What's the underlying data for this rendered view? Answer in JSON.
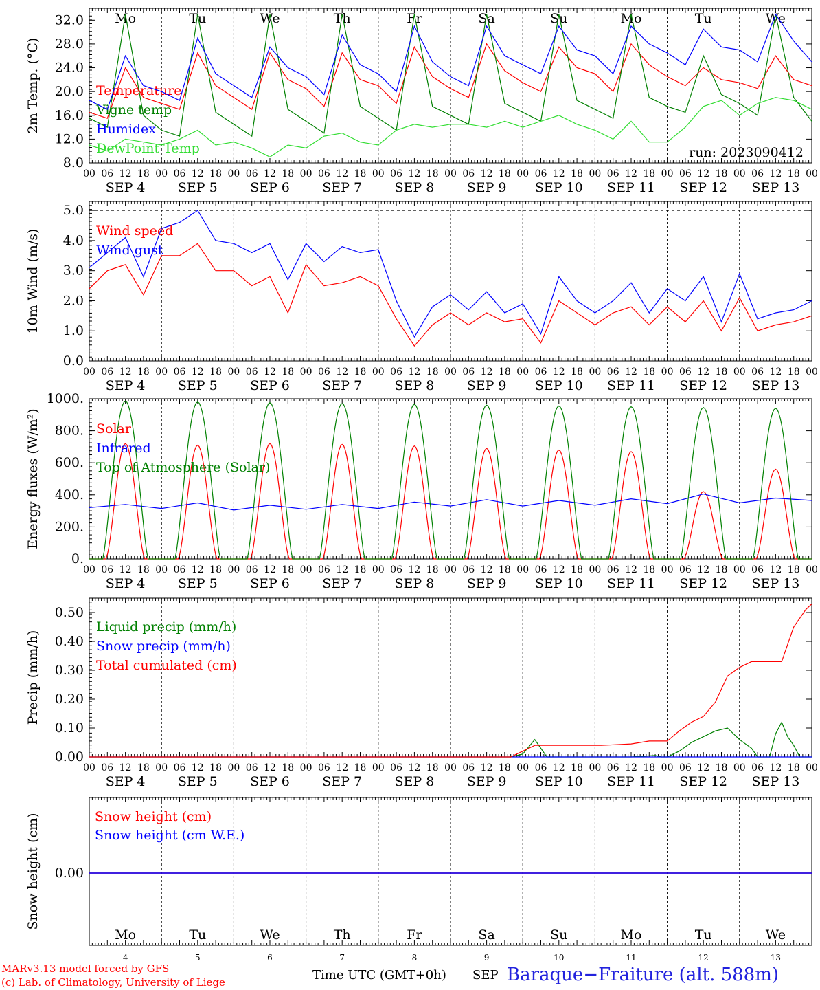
{
  "chart_data": [
    {
      "type": "line",
      "ylabel": "2m Temp. (°C)",
      "ylim": [
        8,
        34
      ],
      "yticks": [
        "8.0",
        "12.0",
        "16.0",
        "20.0",
        "24.0",
        "28.0",
        "32.0"
      ],
      "run_label": "run: 2023090412",
      "series": [
        {
          "name": "Temperature",
          "color": "#ff0000",
          "x": [
            0,
            6,
            12,
            18,
            24,
            30,
            36,
            42,
            48,
            54,
            60,
            66,
            72,
            78,
            84,
            90,
            96,
            102,
            108,
            114,
            120,
            126,
            132,
            138,
            144,
            150,
            156,
            162,
            168,
            174,
            180,
            186,
            192,
            198,
            204,
            210,
            216,
            222,
            228,
            234,
            240
          ],
          "y": [
            16.5,
            15.5,
            24.0,
            19.0,
            18.0,
            17.0,
            26.5,
            21.0,
            19.0,
            17.0,
            26.5,
            22.0,
            20.5,
            17.5,
            26.5,
            22.0,
            21.0,
            18.0,
            27.5,
            22.5,
            20.5,
            19.0,
            28.0,
            23.5,
            21.5,
            20.0,
            27.5,
            24.0,
            23.0,
            20.0,
            28.0,
            24.5,
            22.5,
            21.0,
            24.0,
            22.0,
            21.5,
            20.5,
            26.0,
            22.0,
            21.0
          ]
        },
        {
          "name": "Vigne temp",
          "color": "#008000",
          "x": [
            0,
            6,
            12,
            18,
            24,
            30,
            36,
            42,
            48,
            54,
            60,
            66,
            72,
            78,
            84,
            90,
            96,
            102,
            108,
            114,
            120,
            126,
            132,
            138,
            144,
            150,
            156,
            162,
            168,
            174,
            180,
            186,
            192,
            198,
            204,
            210,
            216,
            222,
            228,
            234,
            240
          ],
          "y": [
            15.5,
            14.0,
            33.0,
            16.0,
            13.5,
            12.5,
            33.0,
            16.5,
            14.5,
            12.5,
            33.0,
            17.0,
            15.0,
            13.0,
            33.0,
            17.5,
            15.5,
            13.5,
            33.0,
            17.5,
            16.0,
            14.5,
            33.0,
            18.0,
            16.5,
            15.0,
            33.0,
            18.5,
            17.0,
            15.5,
            33.0,
            19.0,
            17.5,
            16.5,
            26.0,
            19.5,
            18.0,
            16.0,
            33.0,
            19.0,
            15.0
          ]
        },
        {
          "name": "Humidex",
          "color": "#0000ff",
          "x": [
            0,
            6,
            12,
            18,
            24,
            30,
            36,
            42,
            48,
            54,
            60,
            66,
            72,
            78,
            84,
            90,
            96,
            102,
            108,
            114,
            120,
            126,
            132,
            138,
            144,
            150,
            156,
            162,
            168,
            174,
            180,
            186,
            192,
            198,
            204,
            210,
            216,
            222,
            228,
            234,
            240
          ],
          "y": [
            18.5,
            17.0,
            26.0,
            21.0,
            20.0,
            18.5,
            29.0,
            23.0,
            21.0,
            19.0,
            27.5,
            24.0,
            22.5,
            19.5,
            29.5,
            24.5,
            23.0,
            20.0,
            31.0,
            25.0,
            22.5,
            21.0,
            31.0,
            26.0,
            24.5,
            23.0,
            31.0,
            27.0,
            26.0,
            23.0,
            31.0,
            28.0,
            26.5,
            24.5,
            30.5,
            27.5,
            27.0,
            25.0,
            33.0,
            28.5,
            25.0
          ]
        },
        {
          "name": "DewPoint Temp",
          "color": "#33dd33",
          "x": [
            0,
            6,
            12,
            18,
            24,
            30,
            36,
            42,
            48,
            54,
            60,
            66,
            72,
            78,
            84,
            90,
            96,
            102,
            108,
            114,
            120,
            126,
            132,
            138,
            144,
            150,
            156,
            162,
            168,
            174,
            180,
            186,
            192,
            198,
            204,
            210,
            216,
            222,
            228,
            234,
            240
          ],
          "y": [
            11.0,
            10.0,
            12.0,
            11.5,
            11.0,
            12.0,
            13.5,
            11.0,
            11.5,
            10.5,
            9.0,
            11.0,
            10.5,
            12.5,
            13.0,
            11.5,
            11.0,
            13.5,
            14.5,
            14.0,
            14.5,
            14.5,
            14.0,
            15.0,
            14.0,
            15.0,
            16.0,
            14.5,
            13.5,
            12.0,
            15.0,
            11.5,
            11.5,
            14.0,
            17.5,
            18.5,
            16.0,
            18.0,
            19.0,
            18.5,
            17.0
          ]
        }
      ]
    },
    {
      "type": "line",
      "ylabel": "10m Wind (m/s)",
      "ylim": [
        0,
        5.3
      ],
      "yticks": [
        "0.0",
        "1.0",
        "2.0",
        "3.0",
        "4.0",
        "5.0"
      ],
      "series": [
        {
          "name": "Wind speed",
          "color": "#ff0000",
          "x": [
            0,
            6,
            12,
            18,
            24,
            30,
            36,
            42,
            48,
            54,
            60,
            66,
            72,
            78,
            84,
            90,
            96,
            102,
            108,
            114,
            120,
            126,
            132,
            138,
            144,
            150,
            156,
            162,
            168,
            174,
            180,
            186,
            192,
            198,
            204,
            210,
            216,
            222,
            228,
            234,
            240
          ],
          "y": [
            2.4,
            3.0,
            3.2,
            2.2,
            3.5,
            3.5,
            3.9,
            3.0,
            3.0,
            2.5,
            2.8,
            1.6,
            3.2,
            2.5,
            2.6,
            2.8,
            2.5,
            1.4,
            0.5,
            1.2,
            1.6,
            1.2,
            1.6,
            1.3,
            1.4,
            0.6,
            2.0,
            1.6,
            1.2,
            1.6,
            1.8,
            1.2,
            1.8,
            1.3,
            2.0,
            1.0,
            2.1,
            1.0,
            1.2,
            1.3,
            1.5
          ]
        },
        {
          "name": "Wind gust",
          "color": "#0000ff",
          "x": [
            0,
            6,
            12,
            18,
            24,
            30,
            36,
            42,
            48,
            54,
            60,
            66,
            72,
            78,
            84,
            90,
            96,
            102,
            108,
            114,
            120,
            126,
            132,
            138,
            144,
            150,
            156,
            162,
            168,
            174,
            180,
            186,
            192,
            198,
            204,
            210,
            216,
            222,
            228,
            234,
            240
          ],
          "y": [
            3.1,
            3.6,
            4.1,
            2.8,
            4.4,
            4.6,
            5.0,
            4.0,
            3.9,
            3.6,
            3.9,
            2.7,
            3.9,
            3.3,
            3.8,
            3.6,
            3.7,
            2.0,
            0.8,
            1.8,
            2.2,
            1.7,
            2.3,
            1.6,
            1.9,
            0.9,
            2.8,
            2.0,
            1.6,
            2.0,
            2.6,
            1.6,
            2.4,
            2.0,
            2.8,
            1.3,
            2.9,
            1.4,
            1.6,
            1.7,
            2.0
          ]
        }
      ]
    },
    {
      "type": "line",
      "ylabel": "Energy fluxes (W/m²)",
      "ylim": [
        0,
        1000
      ],
      "yticks": [
        "0.",
        "200.",
        "400.",
        "600.",
        "800.",
        "1000."
      ],
      "series": [
        {
          "name": "Solar",
          "color": "#ff0000",
          "daily_peak": [
            720,
            710,
            720,
            715,
            705,
            690,
            680,
            670,
            420,
            560
          ]
        },
        {
          "name": "Infrared",
          "color": "#0000ff",
          "x": [
            0,
            12,
            24,
            36,
            48,
            60,
            72,
            84,
            96,
            108,
            120,
            132,
            144,
            156,
            168,
            180,
            192,
            204,
            216,
            228,
            240
          ],
          "y": [
            320,
            340,
            315,
            350,
            305,
            335,
            310,
            340,
            315,
            355,
            330,
            370,
            330,
            365,
            335,
            375,
            345,
            405,
            350,
            380,
            365
          ]
        },
        {
          "name": "Top of Atmosphere (Solar)",
          "color": "#008000",
          "daily_peak": [
            985,
            980,
            975,
            970,
            965,
            960,
            955,
            950,
            945,
            940
          ]
        }
      ]
    },
    {
      "type": "line",
      "ylabel": "Precip (mm/h)",
      "ylim": [
        0,
        0.55
      ],
      "yticks": [
        "0.00",
        "0.10",
        "0.20",
        "0.30",
        "0.40",
        "0.50"
      ],
      "series": [
        {
          "name": "Liquid precip (mm/h)",
          "color": "#008000",
          "x": [
            0,
            140,
            144,
            148,
            150,
            152,
            156,
            160,
            180,
            188,
            190,
            192,
            196,
            200,
            204,
            208,
            212,
            216,
            220,
            222,
            224,
            226,
            228,
            230,
            232,
            234,
            236,
            240
          ],
          "y": [
            0,
            0,
            0.01,
            0.06,
            0.03,
            0.0,
            0.0,
            0.0,
            0.0,
            0.005,
            0.0,
            0.0,
            0.02,
            0.05,
            0.07,
            0.09,
            0.1,
            0.06,
            0.03,
            0.0,
            0.0,
            0.0,
            0.08,
            0.12,
            0.07,
            0.04,
            0.0,
            0.0
          ]
        },
        {
          "name": "Snow precip (mm/h)",
          "color": "#0000ff",
          "x": [
            0,
            240
          ],
          "y": [
            0,
            0
          ]
        },
        {
          "name": "Total cumulated (cm)",
          "color": "#ff0000",
          "x": [
            0,
            140,
            144,
            148,
            152,
            170,
            180,
            186,
            192,
            196,
            200,
            204,
            208,
            212,
            216,
            220,
            224,
            230,
            234,
            238,
            240
          ],
          "y": [
            0,
            0,
            0.02,
            0.04,
            0.04,
            0.04,
            0.045,
            0.055,
            0.055,
            0.09,
            0.12,
            0.14,
            0.19,
            0.28,
            0.31,
            0.33,
            0.33,
            0.33,
            0.45,
            0.51,
            0.53
          ]
        }
      ]
    },
    {
      "type": "line",
      "ylabel": "Snow height (cm)",
      "yticks": [
        "0.00"
      ],
      "series": [
        {
          "name": "Snow height (cm)",
          "color": "#ff0000",
          "x": [
            0,
            240
          ],
          "y": [
            0,
            0
          ]
        },
        {
          "name": "Snow height (cm W.E.)",
          "color": "#0000ff",
          "x": [
            0,
            240
          ],
          "y": [
            0,
            0
          ]
        }
      ]
    }
  ],
  "x_axis": {
    "hour_ticks": [
      "00",
      "06",
      "12",
      "18"
    ],
    "end_tick": "00",
    "date_labels": [
      "SEP  4",
      "SEP  5",
      "SEP  6",
      "SEP  7",
      "SEP  8",
      "SEP  9",
      "SEP 10",
      "SEP 11",
      "SEP 12",
      "SEP 13"
    ],
    "weekdays": [
      "Mo",
      "Tu",
      "We",
      "Th",
      "Fr",
      "Sa",
      "Su",
      "Mo",
      "Tu",
      "We"
    ],
    "weekend_color": "#ff0000",
    "day_numbers": [
      "4",
      "5",
      "6",
      "7",
      "8",
      "9",
      "10",
      "11",
      "12",
      "13"
    ],
    "month": "SEP",
    "time_label": "Time UTC (GMT+0h)"
  },
  "footer": {
    "credit_1": "MARv3.13 model forced by GFS",
    "credit_2": "(c) Lab. of Climatology, University of Liege",
    "station": "Baraque−Fraiture (alt. 588m)"
  }
}
